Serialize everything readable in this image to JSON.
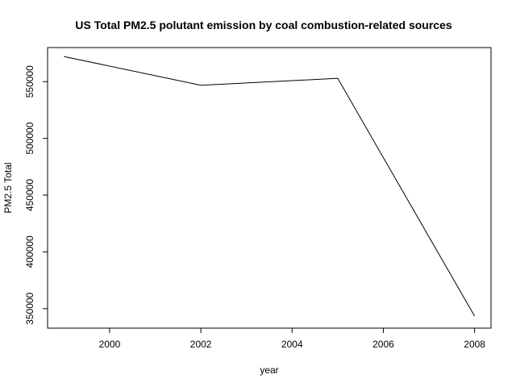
{
  "chart_data": {
    "type": "line",
    "title": "US Total PM2.5 polutant emission by coal combustion-related sources",
    "xlabel": "year",
    "ylabel": "PM2.5 Total",
    "x": [
      1999,
      2002,
      2005,
      2008
    ],
    "series": [
      {
        "values": [
          572126,
          546789,
          552881,
          343432
        ]
      }
    ],
    "xlim": [
      1999,
      2008
    ],
    "ylim": [
      340000,
      580000
    ],
    "x_ticks": [
      2000,
      2002,
      2004,
      2006,
      2008
    ],
    "x_tick_labels": [
      "2000",
      "2002",
      "2004",
      "2006",
      "2008"
    ],
    "y_ticks": [
      350000,
      400000,
      450000,
      500000,
      550000
    ],
    "y_tick_labels": [
      "350000",
      "400000",
      "450000",
      "500000",
      "550000"
    ],
    "grid": false,
    "legend": "none",
    "line_color": "#000000"
  }
}
